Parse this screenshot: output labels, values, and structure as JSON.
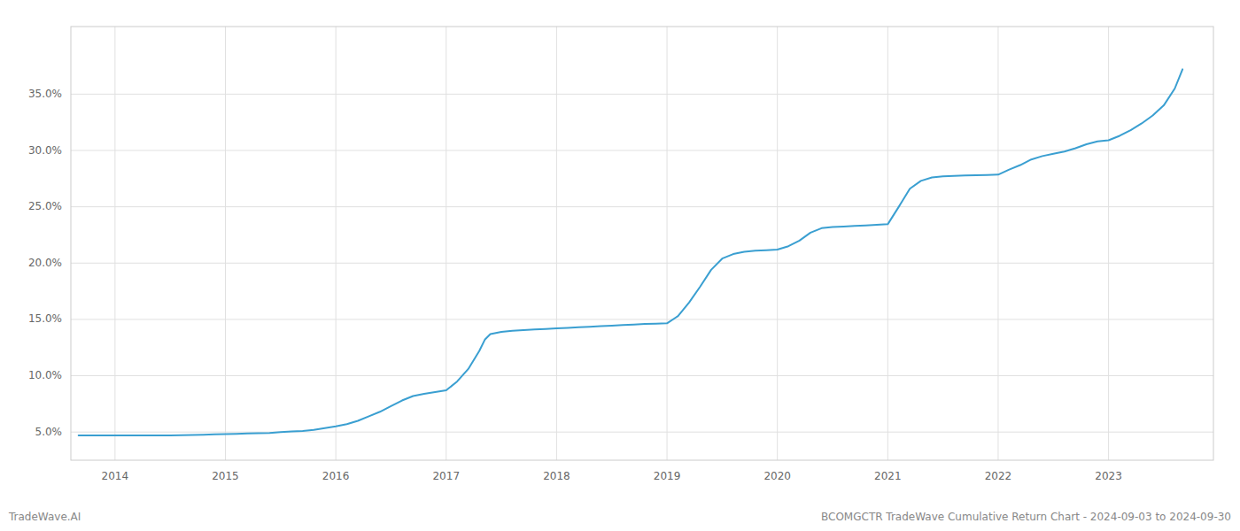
{
  "chart_data": {
    "type": "line",
    "title": "BCOMGCTR TradeWave Cumulative Return Chart - 2024-09-03 to 2024-09-30",
    "annotations": [
      "TradeWave.AI"
    ],
    "color": "#3a9fd1",
    "grid": true,
    "xlim": [
      2013.6,
      2023.95
    ],
    "xticks": [
      2014,
      2015,
      2016,
      2017,
      2018,
      2019,
      2020,
      2021,
      2022,
      2023
    ],
    "ylim": [
      0.025,
      0.41
    ],
    "yticks": [
      {
        "value": 0.05,
        "label": "5.0%"
      },
      {
        "value": 0.1,
        "label": "10.0%"
      },
      {
        "value": 0.15,
        "label": "15.0%"
      },
      {
        "value": 0.2,
        "label": "20.0%"
      },
      {
        "value": 0.25,
        "label": "25.0%"
      },
      {
        "value": 0.3,
        "label": "30.0%"
      },
      {
        "value": 0.35,
        "label": "35.0%"
      }
    ],
    "x": [
      2013.67,
      2013.75,
      2013.85,
      2013.95,
      2014.0,
      2014.1,
      2014.2,
      2014.3,
      2014.4,
      2014.5,
      2014.6,
      2014.7,
      2014.8,
      2014.9,
      2015.0,
      2015.1,
      2015.2,
      2015.3,
      2015.4,
      2015.5,
      2015.6,
      2015.7,
      2015.8,
      2015.9,
      2016.0,
      2016.1,
      2016.2,
      2016.3,
      2016.4,
      2016.5,
      2016.6,
      2016.7,
      2016.8,
      2016.9,
      2017.0,
      2017.1,
      2017.2,
      2017.3,
      2017.35,
      2017.4,
      2017.5,
      2017.6,
      2017.7,
      2017.8,
      2017.9,
      2018.0,
      2018.1,
      2018.2,
      2018.3,
      2018.4,
      2018.5,
      2018.6,
      2018.7,
      2018.8,
      2018.9,
      2019.0,
      2019.1,
      2019.2,
      2019.3,
      2019.4,
      2019.5,
      2019.6,
      2019.7,
      2019.8,
      2019.9,
      2020.0,
      2020.1,
      2020.2,
      2020.3,
      2020.4,
      2020.5,
      2020.6,
      2020.7,
      2020.8,
      2020.9,
      2021.0,
      2021.1,
      2021.2,
      2021.3,
      2021.4,
      2021.5,
      2021.6,
      2021.7,
      2021.8,
      2021.9,
      2022.0,
      2022.1,
      2022.2,
      2022.3,
      2022.4,
      2022.5,
      2022.6,
      2022.7,
      2022.8,
      2022.9,
      2023.0,
      2023.1,
      2023.2,
      2023.3,
      2023.4,
      2023.5,
      2023.6,
      2023.67
    ],
    "values": [
      0.047,
      0.047,
      0.047,
      0.047,
      0.047,
      0.047,
      0.047,
      0.047,
      0.047,
      0.047,
      0.0472,
      0.0474,
      0.0476,
      0.048,
      0.0482,
      0.0484,
      0.0488,
      0.049,
      0.0492,
      0.05,
      0.0505,
      0.051,
      0.052,
      0.0535,
      0.055,
      0.057,
      0.06,
      0.064,
      0.068,
      0.073,
      0.078,
      0.082,
      0.084,
      0.0855,
      0.087,
      0.095,
      0.106,
      0.122,
      0.132,
      0.137,
      0.139,
      0.14,
      0.1405,
      0.141,
      0.1415,
      0.142,
      0.1425,
      0.143,
      0.1435,
      0.144,
      0.1445,
      0.145,
      0.1455,
      0.146,
      0.1462,
      0.1465,
      0.153,
      0.165,
      0.179,
      0.194,
      0.204,
      0.208,
      0.21,
      0.211,
      0.2115,
      0.212,
      0.215,
      0.22,
      0.227,
      0.231,
      0.232,
      0.2325,
      0.233,
      0.2335,
      0.234,
      0.2345,
      0.25,
      0.266,
      0.273,
      0.276,
      0.277,
      0.2775,
      0.2778,
      0.278,
      0.2782,
      0.2785,
      0.283,
      0.287,
      0.292,
      0.295,
      0.297,
      0.299,
      0.302,
      0.3055,
      0.308,
      0.309,
      0.313,
      0.318,
      0.324,
      0.331,
      0.34,
      0.355,
      0.372
    ]
  }
}
